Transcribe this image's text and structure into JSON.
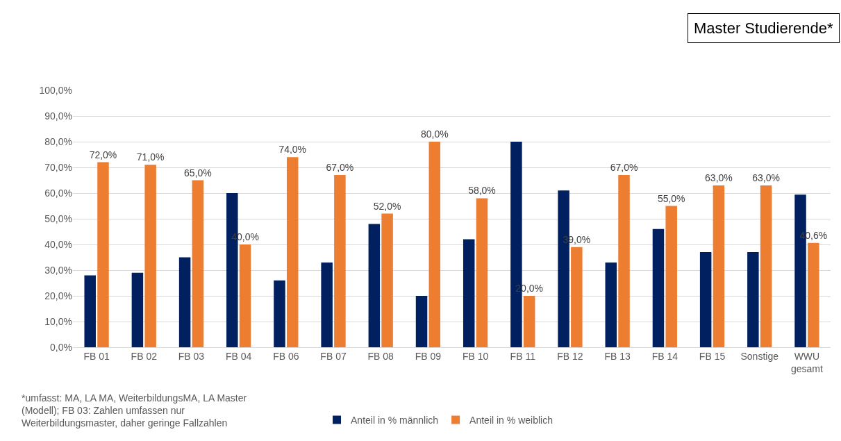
{
  "chart_data": {
    "type": "bar",
    "title": "Master Studierende*",
    "categories": [
      "FB 01",
      "FB 02",
      "FB 03",
      "FB 04",
      "FB 06",
      "FB 07",
      "FB 08",
      "FB 09",
      "FB 10",
      "FB 11",
      "FB 12",
      "FB 13",
      "FB 14",
      "FB 15",
      "Sonstige",
      "WWU\ngesamt"
    ],
    "series": [
      {
        "name": "Anteil in % männlich",
        "color": "#002060",
        "values": [
          28,
          29,
          35,
          60,
          26,
          33,
          48,
          20,
          42,
          80,
          61,
          33,
          46,
          37,
          37,
          59.4
        ]
      },
      {
        "name": "Anteil in % weiblich",
        "color": "#ed7d31",
        "values": [
          72,
          71,
          65,
          40,
          74,
          67,
          52,
          80,
          58,
          20,
          39,
          67,
          55,
          63,
          63,
          40.6
        ],
        "value_labels": [
          "72,0%",
          "71,0%",
          "65,0%",
          "40,0%",
          "74,0%",
          "67,0%",
          "52,0%",
          "80,0%",
          "58,0%",
          "20,0%",
          "39,0%",
          "67,0%",
          "55,0%",
          "63,0%",
          "63,0%",
          "40,6%"
        ]
      }
    ],
    "ylim": [
      0,
      100
    ],
    "yticks": [
      {
        "value": 0,
        "label": "0,0%"
      },
      {
        "value": 10,
        "label": "10,0%"
      },
      {
        "value": 20,
        "label": "20,0%"
      },
      {
        "value": 30,
        "label": "30,0%"
      },
      {
        "value": 40,
        "label": "40,0%"
      },
      {
        "value": 50,
        "label": "50,0%"
      },
      {
        "value": 60,
        "label": "60,0%"
      },
      {
        "value": 70,
        "label": "70,0%"
      },
      {
        "value": 80,
        "label": "80,0%"
      },
      {
        "value": 90,
        "label": "90,0%"
      },
      {
        "value": 100,
        "label": "100,0%"
      }
    ],
    "grid": "y",
    "legend": "bottom",
    "annotations": [
      "*umfasst: MA, LA MA, WeiterbildungsMA, LA Master\n(Modell); FB 03: Zahlen umfassen nur\nWeiterbildungsmaster, daher geringe Fallzahlen"
    ]
  }
}
